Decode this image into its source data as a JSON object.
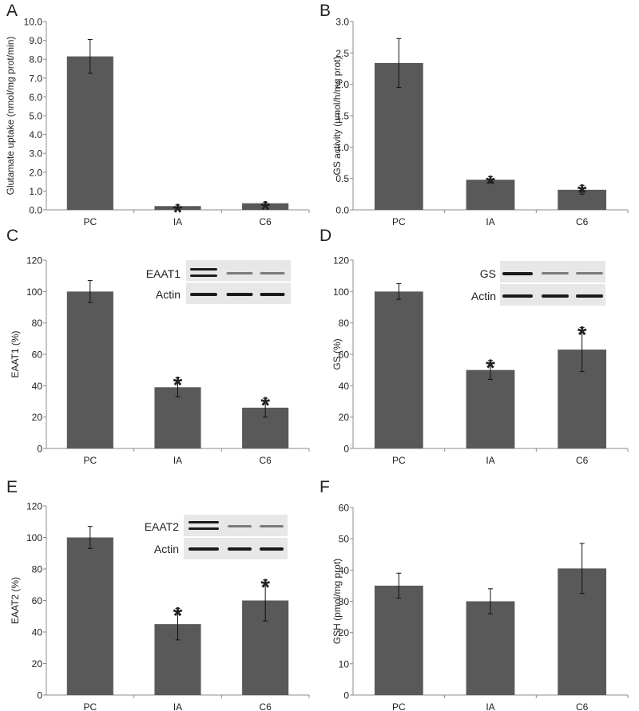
{
  "panel_letters": [
    "A",
    "B",
    "C",
    "D",
    "E",
    "F"
  ],
  "significance_marker": "*",
  "colors": {
    "bar": "#595959",
    "axis": "#8c8c8c",
    "text": "#222222",
    "blot_bg": "#e7e7e7",
    "band": "#1a1a1a"
  },
  "blots": {
    "B": {
      "rows": [
        "EAAT1",
        "Actin"
      ]
    },
    "C": {
      "rows": [
        "EAAT2",
        "Actin"
      ]
    },
    "E": {
      "rows": [
        "GS",
        "Actin"
      ]
    }
  },
  "chart_data": [
    {
      "panel": "A",
      "type": "bar",
      "categories": [
        "PC",
        "IA",
        "C6"
      ],
      "values": [
        8.15,
        0.2,
        0.35
      ],
      "errors": [
        0.9,
        0.06,
        0.06
      ],
      "significant": [
        false,
        true,
        true
      ],
      "ylabel": "Glutamate uptake (nmol/mg prot/min)",
      "ylim": [
        0,
        10
      ],
      "yticks": [
        "0.0",
        "1.0",
        "2.0",
        "3.0",
        "4.0",
        "5.0",
        "6.0",
        "7.0",
        "8.0",
        "9.0",
        "10.0"
      ],
      "grid": false
    },
    {
      "panel": "D",
      "type": "bar",
      "categories": [
        "PC",
        "IA",
        "C6"
      ],
      "values": [
        2.34,
        0.48,
        0.32
      ],
      "errors": [
        0.39,
        0.05,
        0.07
      ],
      "significant": [
        false,
        true,
        true
      ],
      "ylabel": "GS activity (µmol/h/mg prot)",
      "ylim": [
        0,
        3
      ],
      "yticks": [
        "0.0",
        "0.5",
        "1.0",
        "1.5",
        "2.0",
        "2.5",
        "3.0"
      ],
      "grid": false
    },
    {
      "panel": "B",
      "type": "bar",
      "categories": [
        "PC",
        "IA",
        "C6"
      ],
      "values": [
        100,
        39,
        26
      ],
      "errors": [
        7,
        6,
        6
      ],
      "significant": [
        false,
        true,
        true
      ],
      "ylabel": "EAAT1 (%)",
      "ylim": [
        0,
        120
      ],
      "yticks": [
        "0",
        "20",
        "40",
        "60",
        "80",
        "100",
        "120"
      ],
      "grid": false
    },
    {
      "panel": "E",
      "type": "bar",
      "categories": [
        "PC",
        "IA",
        "C6"
      ],
      "values": [
        100,
        50,
        63
      ],
      "errors": [
        5,
        6,
        14
      ],
      "significant": [
        false,
        true,
        true
      ],
      "ylabel": "GS (%)",
      "ylim": [
        0,
        120
      ],
      "yticks": [
        "0",
        "20",
        "40",
        "60",
        "80",
        "100",
        "120"
      ],
      "grid": false
    },
    {
      "panel": "C",
      "type": "bar",
      "categories": [
        "PC",
        "IA",
        "C6"
      ],
      "values": [
        100,
        45,
        60
      ],
      "errors": [
        7,
        10,
        13
      ],
      "significant": [
        false,
        true,
        true
      ],
      "ylabel": "EAAT2 (%)",
      "ylim": [
        0,
        120
      ],
      "yticks": [
        "0",
        "20",
        "40",
        "60",
        "80",
        "100",
        "120"
      ],
      "grid": false
    },
    {
      "panel": "F",
      "type": "bar",
      "categories": [
        "PC",
        "IA",
        "C6"
      ],
      "values": [
        35,
        30,
        40.5
      ],
      "errors": [
        4,
        4,
        8
      ],
      "significant": [
        false,
        false,
        false
      ],
      "ylabel": "GSH (pmol/mg prot)",
      "ylim": [
        0,
        60
      ],
      "yticks": [
        "0",
        "10",
        "20",
        "30",
        "40",
        "50",
        "60"
      ],
      "grid": false
    }
  ]
}
